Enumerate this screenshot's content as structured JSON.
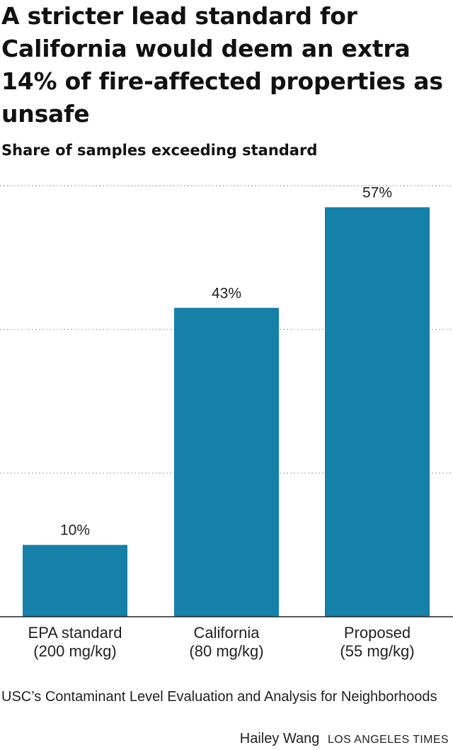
{
  "title": "A stricter lead standard for California would deem an extra 14% of fire-affected properties as unsafe",
  "subtitle": "Share of samples exceeding standard",
  "source": "USC’s Contaminant Level Evaluation and Analysis for Neighborhoods",
  "credit": {
    "byline": "Hailey Wang",
    "outlet": "LOS ANGELES TIMES"
  },
  "colors": {
    "bar": "#1580a8",
    "grid": "#aaaaaa",
    "axis": "#222222"
  },
  "chart_data": {
    "type": "bar",
    "categories": [
      [
        "EPA standard",
        "(200 mg/kg)"
      ],
      [
        "California",
        "(80 mg/kg)"
      ],
      [
        "Proposed",
        "(55 mg/kg)"
      ]
    ],
    "values": [
      10,
      43,
      57
    ],
    "value_labels": [
      "10%",
      "43%",
      "57%"
    ],
    "ylim": [
      0,
      60
    ],
    "gridlines": [
      20,
      40,
      60
    ],
    "grid": true,
    "xlabel": "",
    "ylabel": ""
  }
}
